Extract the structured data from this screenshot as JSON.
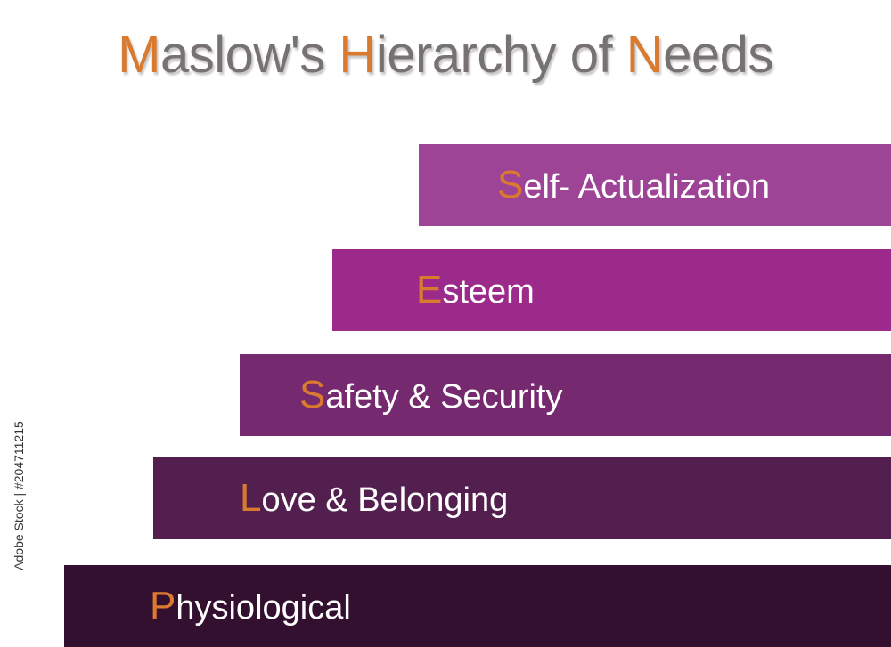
{
  "title": {
    "parts": [
      {
        "text": "M",
        "highlight": true
      },
      {
        "text": "aslow's ",
        "highlight": false
      },
      {
        "text": "H",
        "highlight": true
      },
      {
        "text": "ierarchy of ",
        "highlight": false
      },
      {
        "text": "N",
        "highlight": true
      },
      {
        "text": "eeds",
        "highlight": false
      }
    ]
  },
  "levels": [
    {
      "first": "S",
      "rest": "elf- Actualization",
      "color": "#9e4497"
    },
    {
      "first": "E",
      "rest": "steem",
      "color": "#9c2a8b"
    },
    {
      "first": "S",
      "rest": "afety & Security",
      "color": "#75296f"
    },
    {
      "first": "L",
      "rest": "ove & Belonging",
      "color": "#531f4f"
    },
    {
      "first": "P",
      "rest": "hysiological",
      "color": "#33102f"
    }
  ],
  "accent_color": "#d97a2f",
  "watermark": {
    "side_text": "Adobe Stock | #204711215"
  }
}
